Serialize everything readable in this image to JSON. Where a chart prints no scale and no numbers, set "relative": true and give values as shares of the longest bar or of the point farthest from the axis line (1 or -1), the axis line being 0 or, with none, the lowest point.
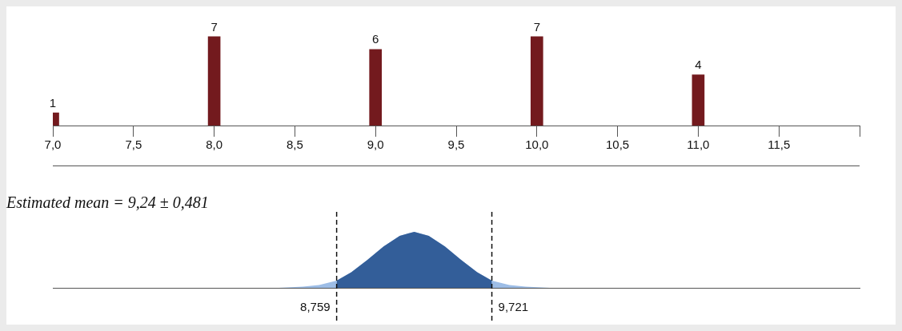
{
  "chart_data": [
    {
      "type": "bar",
      "x": [
        7,
        8,
        9,
        10,
        11
      ],
      "values": [
        1,
        7,
        6,
        7,
        4
      ],
      "color": "#731a1e",
      "data_labels": true,
      "xlim": [
        7,
        12
      ],
      "xticks": [
        {
          "value": 7,
          "label": "7,0"
        },
        {
          "value": 7.5,
          "label": "7,5"
        },
        {
          "value": 8,
          "label": "8,0"
        },
        {
          "value": 8.5,
          "label": "8,5"
        },
        {
          "value": 9,
          "label": "9,0"
        },
        {
          "value": 9.5,
          "label": "9,5"
        },
        {
          "value": 10,
          "label": "10,0"
        },
        {
          "value": 10.5,
          "label": "10,5"
        },
        {
          "value": 11,
          "label": "11,0"
        },
        {
          "value": 11.5,
          "label": "11,5"
        },
        {
          "value": 12,
          "label": null
        }
      ],
      "grid": false,
      "legend": false
    },
    {
      "type": "area",
      "title": "Estimated mean = 9,24 ± 0,481",
      "relative": true,
      "xlim": [
        7,
        12
      ],
      "legend": false,
      "series": [
        {
          "color": "#9dbde6",
          "x": [
            8.4,
            8.55,
            8.65,
            8.759,
            8.85,
            8.95,
            9.05,
            9.15,
            9.24,
            9.33,
            9.43,
            9.53,
            9.63,
            9.721,
            9.83,
            9.93,
            10.08
          ],
          "values": [
            0,
            0.02,
            0.05,
            0.13,
            0.28,
            0.5,
            0.74,
            0.93,
            1,
            0.93,
            0.74,
            0.5,
            0.28,
            0.13,
            0.05,
            0.02,
            0
          ]
        },
        {
          "color": "#335e99",
          "x": [
            8.759,
            8.85,
            8.95,
            9.05,
            9.15,
            9.24,
            9.33,
            9.43,
            9.53,
            9.63,
            9.721
          ],
          "values": [
            0.13,
            0.28,
            0.5,
            0.74,
            0.93,
            1,
            0.93,
            0.74,
            0.5,
            0.28,
            0.13
          ]
        }
      ],
      "ref_lines": [
        {
          "axis": "x",
          "value": 8.759,
          "label": "8,759",
          "line_style": "dashed"
        },
        {
          "axis": "x",
          "value": 9.721,
          "label": "9,721",
          "line_style": "dashed"
        }
      ]
    }
  ]
}
